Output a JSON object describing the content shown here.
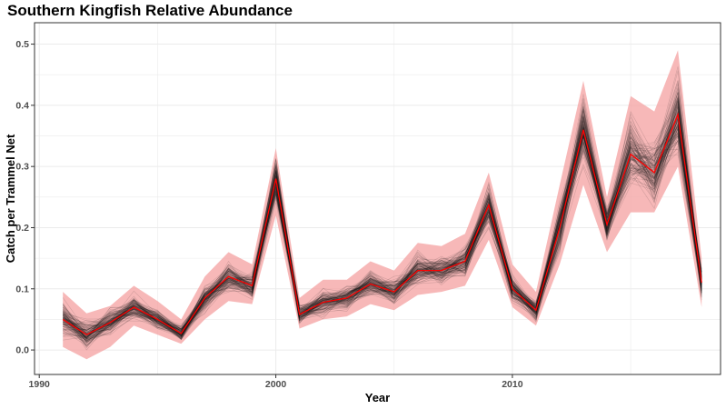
{
  "chart_data": {
    "type": "line",
    "title": "Southern Kingfish Relative Abundance",
    "xlabel": "Year",
    "ylabel": "Catch per Trammel Net",
    "xlim": [
      1989.8,
      2018.8
    ],
    "ylim": [
      -0.04,
      0.535
    ],
    "x_ticks": [
      1990,
      2000,
      2010
    ],
    "x_tick_labels": [
      "1990",
      "2000",
      "2010"
    ],
    "y_ticks": [
      0.0,
      0.1,
      0.2,
      0.3,
      0.4,
      0.5
    ],
    "y_tick_labels": [
      "0.0",
      "0.1",
      "0.2",
      "0.3",
      "0.4",
      "0.5"
    ],
    "grid": true,
    "legend": "none",
    "colors": {
      "mean_line": "#ff0000",
      "ribbon": "#f4a0a0",
      "iterations": "#1a1a1a",
      "grid": "#ebebeb",
      "panel_border": "#333333"
    },
    "x": [
      1991,
      1992,
      1993,
      1994,
      1995,
      1996,
      1997,
      1998,
      1999,
      2000,
      2001,
      2002,
      2003,
      2004,
      2005,
      2006,
      2007,
      2008,
      2009,
      2010,
      2011,
      2012,
      2013,
      2014,
      2015,
      2016,
      2017,
      2018
    ],
    "series": [
      {
        "role": "mean",
        "values": [
          0.05,
          0.025,
          0.045,
          0.07,
          0.05,
          0.027,
          0.085,
          0.12,
          0.105,
          0.28,
          0.058,
          0.078,
          0.085,
          0.108,
          0.095,
          0.13,
          0.13,
          0.145,
          0.237,
          0.1,
          0.065,
          0.2,
          0.36,
          0.205,
          0.32,
          0.29,
          0.385,
          0.11
        ]
      },
      {
        "role": "ribbon_upper",
        "values": [
          0.095,
          0.06,
          0.072,
          0.105,
          0.08,
          0.05,
          0.12,
          0.16,
          0.14,
          0.33,
          0.085,
          0.115,
          0.115,
          0.145,
          0.13,
          0.175,
          0.17,
          0.19,
          0.29,
          0.14,
          0.095,
          0.27,
          0.44,
          0.25,
          0.415,
          0.39,
          0.49,
          0.15
        ]
      },
      {
        "role": "ribbon_lower",
        "values": [
          0.005,
          -0.015,
          0.005,
          0.04,
          0.025,
          0.01,
          0.05,
          0.08,
          0.075,
          0.22,
          0.035,
          0.05,
          0.055,
          0.075,
          0.065,
          0.09,
          0.095,
          0.105,
          0.18,
          0.07,
          0.04,
          0.14,
          0.27,
          0.16,
          0.225,
          0.225,
          0.3,
          0.07
        ]
      }
    ]
  }
}
